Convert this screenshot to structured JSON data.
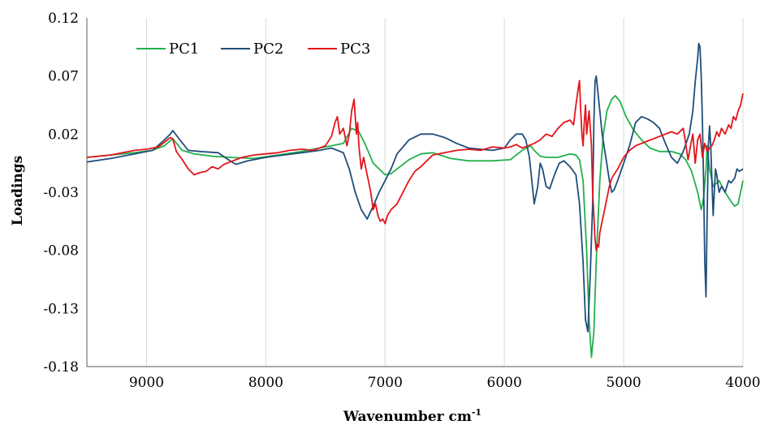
{
  "chart_data": {
    "type": "line",
    "title": "",
    "xlabel": "Wavenumber cm",
    "xlabel_superscript": "-1",
    "ylabel": "Loadings",
    "xlim": [
      9500,
      4000
    ],
    "ylim": [
      -0.18,
      0.12
    ],
    "x_ticks": [
      9000,
      8000,
      7000,
      6000,
      5000,
      4000
    ],
    "x_tick_labels": [
      "9000",
      "8000",
      "7000",
      "6000",
      "5000",
      "4000"
    ],
    "y_ticks": [
      0.12,
      0.07,
      0.02,
      -0.03,
      -0.08,
      -0.13,
      -0.18
    ],
    "y_tick_labels": [
      "0.12",
      "0.07",
      "0.02",
      "-0.03",
      "-0.08",
      "-0.13",
      "-0.18"
    ],
    "grid": "vertical",
    "legend_position": "top-left",
    "series": [
      {
        "name": "PC1",
        "color": "#22b04a",
        "x": [
          9500,
          9300,
          9100,
          8950,
          8850,
          8780,
          8700,
          8600,
          8450,
          8300,
          8100,
          7900,
          7700,
          7550,
          7450,
          7350,
          7280,
          7220,
          7170,
          7100,
          7000,
          6950,
          6900,
          6800,
          6700,
          6600,
          6450,
          6300,
          6100,
          5950,
          5850,
          5780,
          5750,
          5700,
          5650,
          5550,
          5450,
          5400,
          5370,
          5340,
          5310,
          5290,
          5270,
          5250,
          5230,
          5200,
          5170,
          5140,
          5100,
          5070,
          5030,
          4980,
          4920,
          4850,
          4780,
          4700,
          4600,
          4530,
          4480,
          4430,
          4380,
          4350,
          4330,
          4310,
          4300,
          4280,
          4250,
          4200,
          4150,
          4100,
          4070,
          4040,
          4000
        ],
        "y": [
          0.0,
          0.002,
          0.004,
          0.006,
          0.01,
          0.016,
          0.006,
          0.003,
          0.001,
          0.0,
          -0.001,
          0.002,
          0.005,
          0.008,
          0.01,
          0.012,
          0.025,
          0.022,
          0.012,
          -0.005,
          -0.015,
          -0.014,
          -0.01,
          -0.002,
          0.003,
          0.004,
          -0.001,
          -0.003,
          -0.003,
          -0.002,
          0.006,
          0.01,
          0.006,
          0.001,
          0.0,
          0.0,
          0.003,
          0.002,
          -0.002,
          -0.02,
          -0.08,
          -0.14,
          -0.172,
          -0.15,
          -0.09,
          -0.02,
          0.02,
          0.04,
          0.05,
          0.053,
          0.048,
          0.035,
          0.024,
          0.015,
          0.008,
          0.005,
          0.005,
          0.003,
          -0.002,
          -0.012,
          -0.03,
          -0.045,
          -0.035,
          -0.01,
          0.01,
          -0.01,
          -0.025,
          -0.02,
          -0.03,
          -0.038,
          -0.042,
          -0.04,
          -0.02
        ]
      },
      {
        "name": "PC2",
        "color": "#1f4e79",
        "x": [
          9500,
          9300,
          9100,
          8950,
          8850,
          8800,
          8780,
          8720,
          8650,
          8550,
          8400,
          8300,
          8250,
          8150,
          8000,
          7850,
          7700,
          7550,
          7450,
          7350,
          7300,
          7250,
          7200,
          7150,
          7100,
          7050,
          7000,
          6950,
          6900,
          6800,
          6700,
          6600,
          6500,
          6400,
          6300,
          6200,
          6100,
          6000,
          5950,
          5900,
          5850,
          5820,
          5790,
          5770,
          5750,
          5720,
          5700,
          5680,
          5650,
          5620,
          5580,
          5540,
          5500,
          5450,
          5400,
          5370,
          5340,
          5320,
          5300,
          5280,
          5260,
          5250,
          5240,
          5230,
          5220,
          5200,
          5180,
          5150,
          5120,
          5100,
          5080,
          5050,
          5000,
          4950,
          4900,
          4850,
          4800,
          4750,
          4700,
          4650,
          4600,
          4550,
          4500,
          4450,
          4420,
          4400,
          4380,
          4370,
          4360,
          4350,
          4340,
          4330,
          4320,
          4310,
          4300,
          4290,
          4280,
          4270,
          4260,
          4250,
          4240,
          4230,
          4220,
          4200,
          4180,
          4150,
          4120,
          4100,
          4070,
          4050,
          4030,
          4000
        ],
        "y": [
          -0.004,
          -0.001,
          0.003,
          0.006,
          0.015,
          0.02,
          0.023,
          0.015,
          0.006,
          0.005,
          0.004,
          -0.003,
          -0.006,
          -0.003,
          0.0,
          0.002,
          0.004,
          0.006,
          0.008,
          0.004,
          -0.01,
          -0.03,
          -0.045,
          -0.053,
          -0.042,
          -0.03,
          -0.02,
          -0.01,
          0.003,
          0.015,
          0.02,
          0.02,
          0.017,
          0.012,
          0.008,
          0.007,
          0.006,
          0.008,
          0.015,
          0.02,
          0.02,
          0.015,
          0.0,
          -0.02,
          -0.04,
          -0.025,
          -0.005,
          -0.01,
          -0.025,
          -0.027,
          -0.015,
          -0.005,
          -0.003,
          -0.008,
          -0.015,
          -0.04,
          -0.09,
          -0.14,
          -0.15,
          -0.1,
          -0.04,
          0.03,
          0.065,
          0.07,
          0.06,
          0.04,
          0.02,
          0.0,
          -0.02,
          -0.03,
          -0.028,
          -0.02,
          -0.005,
          0.01,
          0.03,
          0.035,
          0.033,
          0.03,
          0.025,
          0.012,
          0.0,
          -0.005,
          0.005,
          0.02,
          0.04,
          0.065,
          0.085,
          0.098,
          0.095,
          0.07,
          0.03,
          -0.02,
          -0.09,
          -0.12,
          -0.05,
          0.01,
          0.027,
          0.01,
          -0.02,
          -0.05,
          -0.03,
          -0.01,
          -0.015,
          -0.03,
          -0.025,
          -0.03,
          -0.02,
          -0.022,
          -0.018,
          -0.01,
          -0.012,
          -0.01
        ]
      },
      {
        "name": "PC3",
        "color": "#e4141b",
        "x": [
          9500,
          9400,
          9300,
          9200,
          9100,
          9000,
          8900,
          8850,
          8800,
          8780,
          8750,
          8700,
          8650,
          8600,
          8550,
          8500,
          8450,
          8400,
          8350,
          8300,
          8250,
          8200,
          8100,
          8000,
          7900,
          7800,
          7700,
          7600,
          7550,
          7500,
          7450,
          7420,
          7400,
          7380,
          7350,
          7320,
          7300,
          7280,
          7260,
          7250,
          7240,
          7230,
          7220,
          7200,
          7180,
          7150,
          7120,
          7100,
          7080,
          7060,
          7040,
          7020,
          7000,
          6980,
          6950,
          6900,
          6850,
          6800,
          6750,
          6700,
          6650,
          6600,
          6500,
          6400,
          6300,
          6200,
          6100,
          6000,
          5950,
          5900,
          5850,
          5800,
          5750,
          5700,
          5650,
          5600,
          5550,
          5500,
          5450,
          5420,
          5400,
          5380,
          5370,
          5360,
          5350,
          5340,
          5330,
          5320,
          5310,
          5300,
          5290,
          5280,
          5270,
          5260,
          5250,
          5240,
          5230,
          5220,
          5210,
          5200,
          5180,
          5160,
          5140,
          5120,
          5100,
          5050,
          5000,
          4950,
          4900,
          4850,
          4800,
          4750,
          4700,
          4650,
          4600,
          4550,
          4500,
          4480,
          4460,
          4440,
          4420,
          4400,
          4380,
          4360,
          4340,
          4320,
          4300,
          4280,
          4260,
          4240,
          4220,
          4200,
          4180,
          4150,
          4120,
          4100,
          4080,
          4060,
          4040,
          4020,
          4000
        ],
        "y": [
          0.0,
          0.001,
          0.002,
          0.004,
          0.006,
          0.007,
          0.009,
          0.013,
          0.017,
          0.016,
          0.005,
          -0.002,
          -0.01,
          -0.015,
          -0.013,
          -0.012,
          -0.008,
          -0.01,
          -0.006,
          -0.004,
          -0.002,
          0.0,
          0.002,
          0.003,
          0.004,
          0.006,
          0.007,
          0.006,
          0.008,
          0.01,
          0.018,
          0.03,
          0.035,
          0.02,
          0.025,
          0.01,
          0.02,
          0.04,
          0.05,
          0.035,
          0.02,
          0.03,
          0.01,
          -0.01,
          0.0,
          -0.015,
          -0.03,
          -0.045,
          -0.04,
          -0.05,
          -0.055,
          -0.053,
          -0.057,
          -0.05,
          -0.045,
          -0.04,
          -0.03,
          -0.02,
          -0.012,
          -0.008,
          -0.003,
          0.002,
          0.004,
          0.006,
          0.007,
          0.006,
          0.009,
          0.008,
          0.009,
          0.011,
          0.008,
          0.01,
          0.012,
          0.015,
          0.02,
          0.018,
          0.025,
          0.03,
          0.032,
          0.028,
          0.045,
          0.06,
          0.066,
          0.04,
          0.02,
          0.01,
          0.03,
          0.045,
          0.02,
          0.03,
          0.04,
          0.025,
          0.01,
          -0.03,
          -0.05,
          -0.07,
          -0.08,
          -0.075,
          -0.077,
          -0.065,
          -0.055,
          -0.045,
          -0.035,
          -0.025,
          -0.018,
          -0.01,
          0.0,
          0.006,
          0.01,
          0.012,
          0.014,
          0.016,
          0.018,
          0.02,
          0.022,
          0.02,
          0.025,
          0.012,
          -0.002,
          0.01,
          0.02,
          -0.005,
          0.015,
          0.02,
          0.0,
          0.012,
          0.005,
          0.008,
          0.01,
          0.015,
          0.022,
          0.018,
          0.025,
          0.02,
          0.028,
          0.025,
          0.035,
          0.032,
          0.04,
          0.045,
          0.055
        ]
      }
    ]
  }
}
